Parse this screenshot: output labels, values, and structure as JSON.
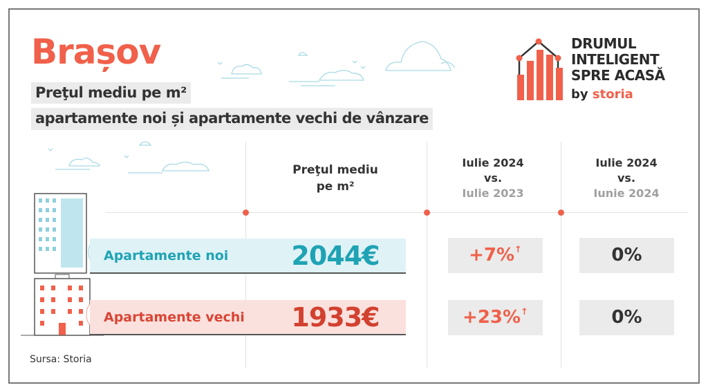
{
  "title": "Brașov",
  "subtitle_line1": "Preţul mediu pe m²",
  "subtitle_line2": "apartamente noi și apartamente vechi de vânzare",
  "logo": {
    "line1": "DRUMUL",
    "line2": "INTELIGENT",
    "line3": "SPRE ACASĂ",
    "by": "by",
    "brand": "storia"
  },
  "columns": {
    "price": {
      "line1": "Preţul mediu",
      "line2": "pe m²"
    },
    "yoy": {
      "line1": "Iulie 2024",
      "line2": "vs.",
      "line3": "Iulie 2023"
    },
    "mom": {
      "line1": "Iulie 2024",
      "line2": "vs.",
      "line3": "Iunie 2024"
    }
  },
  "rows": [
    {
      "label": "Apartamente noi",
      "price": "2044€",
      "yoy": "+7%",
      "yoy_arrow": "↑",
      "mom": "0%",
      "color": "#1fa3b4",
      "band": "#dff2f6"
    },
    {
      "label": "Apartamente vechi",
      "price": "1933€",
      "yoy": "+23%",
      "yoy_arrow": "↑",
      "mom": "0%",
      "color": "#d94535",
      "band": "#fbe1dd"
    }
  ],
  "source": "Sursa: Storia",
  "colors": {
    "accent": "#f0604a",
    "teal": "#1fa3b4",
    "grey_box": "#ebebeb"
  }
}
